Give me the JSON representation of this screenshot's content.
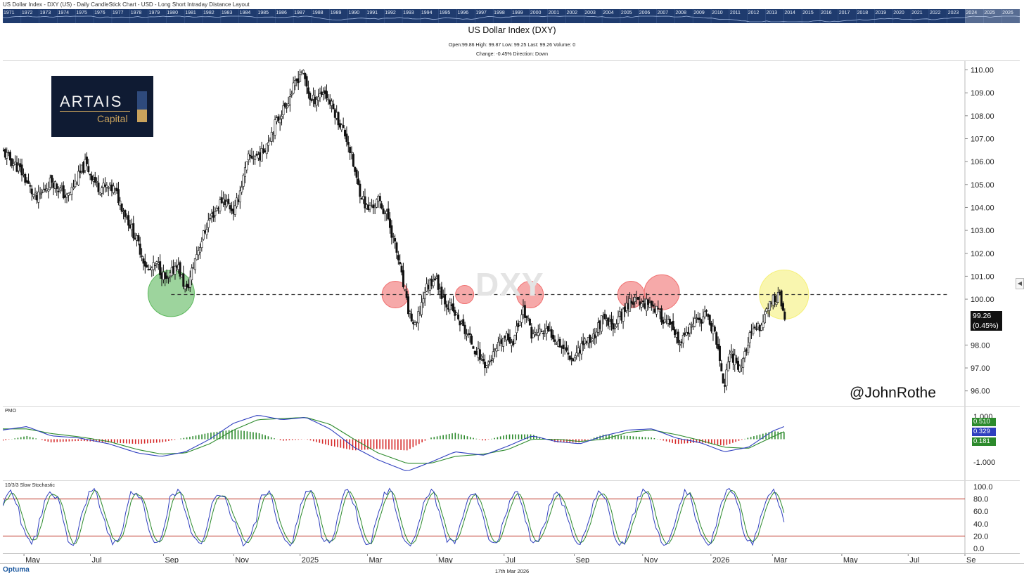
{
  "window_title": "US Dollar Index - DXY (US) - Daily CandleStick Chart - USD - Long Short Intraday Distance Layout",
  "timeline_years": [
    "1971",
    "1972",
    "1973",
    "1974",
    "1975",
    "1976",
    "1977",
    "1978",
    "1979",
    "1980",
    "1981",
    "1982",
    "1983",
    "1984",
    "1985",
    "1986",
    "1987",
    "1988",
    "1989",
    "1990",
    "1991",
    "1992",
    "1993",
    "1994",
    "1995",
    "1996",
    "1997",
    "1998",
    "1999",
    "2000",
    "2001",
    "2002",
    "2003",
    "2004",
    "2005",
    "2006",
    "2007",
    "2008",
    "2009",
    "2010",
    "2011",
    "2012",
    "2013",
    "2014",
    "2015",
    "2016",
    "2017",
    "2018",
    "2019",
    "2020",
    "2021",
    "2022",
    "2023",
    "2024",
    "2025",
    "2026"
  ],
  "title": "US Dollar Index (DXY)",
  "ohlc_line": "Open:99.86   High: 99.87   Low: 99.25   Last: 99.26   Volume: 0",
  "change_line": "Change: -0.45%   Direction: Down",
  "logo": {
    "word": "ARTAIS",
    "sub": "Capital"
  },
  "watermark": "DXY",
  "handle": "@JohnRothe",
  "last_price": {
    "value": "99.26",
    "change": "(0.45%)"
  },
  "footer": {
    "brand": "Optuma",
    "date": "17th Mar 2026"
  },
  "colors": {
    "candle": "#111111",
    "support_green": "#5cb85c",
    "resistance_red": "#f07070",
    "test_yellow": "#f5f07a",
    "pmo_blue": "#2f3fbf",
    "pmo_green": "#2c8a2c",
    "hist_red": "#d62a2a",
    "stoch_red": "#c0392b"
  },
  "icons": {
    "collapse": "chevron-left-icon"
  },
  "chart_data": [
    {
      "type": "candlestick",
      "title": "US Dollar Index (DXY)",
      "ylim": [
        95.5,
        110.2
      ],
      "y_ticks": [
        "110.00",
        "109.00",
        "108.00",
        "107.00",
        "106.00",
        "105.00",
        "104.00",
        "103.00",
        "102.00",
        "101.00",
        "100.00",
        "98.00",
        "97.00",
        "96.00"
      ],
      "x_tick_labels": [
        "May",
        "Jul",
        "Sep",
        "Nov",
        "2025",
        "Mar",
        "May",
        "Jul",
        "Sep",
        "Nov",
        "2026",
        "Mar",
        "May",
        "Jul",
        "Se"
      ],
      "x_tick_frac": [
        0.022,
        0.091,
        0.167,
        0.24,
        0.309,
        0.379,
        0.451,
        0.521,
        0.594,
        0.665,
        0.736,
        0.8,
        0.872,
        0.941,
        1.0
      ],
      "data_span_frac": [
        0.0,
        0.812
      ],
      "close_path": [
        [
          0.0,
          106.4
        ],
        [
          0.018,
          105.6
        ],
        [
          0.034,
          104.3
        ],
        [
          0.05,
          105.2
        ],
        [
          0.066,
          104.4
        ],
        [
          0.085,
          105.9
        ],
        [
          0.098,
          104.9
        ],
        [
          0.115,
          104.8
        ],
        [
          0.128,
          103.6
        ],
        [
          0.14,
          102.4
        ],
        [
          0.15,
          101.2
        ],
        [
          0.16,
          101.5
        ],
        [
          0.17,
          100.7
        ],
        [
          0.18,
          101.6
        ],
        [
          0.19,
          100.3
        ],
        [
          0.2,
          101.9
        ],
        [
          0.213,
          103.4
        ],
        [
          0.228,
          104.4
        ],
        [
          0.24,
          103.8
        ],
        [
          0.255,
          106.2
        ],
        [
          0.268,
          106.3
        ],
        [
          0.282,
          107.6
        ],
        [
          0.296,
          108.7
        ],
        [
          0.31,
          110.0
        ],
        [
          0.32,
          108.6
        ],
        [
          0.333,
          109.1
        ],
        [
          0.345,
          108.1
        ],
        [
          0.358,
          106.9
        ],
        [
          0.368,
          105.0
        ],
        [
          0.378,
          103.9
        ],
        [
          0.39,
          104.3
        ],
        [
          0.4,
          103.5
        ],
        [
          0.41,
          101.8
        ],
        [
          0.42,
          99.6
        ],
        [
          0.428,
          98.7
        ],
        [
          0.438,
          100.4
        ],
        [
          0.448,
          101.0
        ],
        [
          0.458,
          100.0
        ],
        [
          0.47,
          99.3
        ],
        [
          0.48,
          98.6
        ],
        [
          0.492,
          97.7
        ],
        [
          0.502,
          97.1
        ],
        [
          0.51,
          97.6
        ],
        [
          0.52,
          98.3
        ],
        [
          0.53,
          98.2
        ],
        [
          0.54,
          99.6
        ],
        [
          0.55,
          98.4
        ],
        [
          0.56,
          98.6
        ],
        [
          0.57,
          98.5
        ],
        [
          0.58,
          98.0
        ],
        [
          0.592,
          97.4
        ],
        [
          0.602,
          98.1
        ],
        [
          0.612,
          98.3
        ],
        [
          0.622,
          99.1
        ],
        [
          0.632,
          98.8
        ],
        [
          0.642,
          99.3
        ],
        [
          0.652,
          100.0
        ],
        [
          0.662,
          99.8
        ],
        [
          0.672,
          99.9
        ],
        [
          0.682,
          99.3
        ],
        [
          0.692,
          98.9
        ],
        [
          0.702,
          98.0
        ],
        [
          0.712,
          98.6
        ],
        [
          0.722,
          99.1
        ],
        [
          0.732,
          99.3
        ],
        [
          0.742,
          98.1
        ],
        [
          0.748,
          96.1
        ],
        [
          0.756,
          97.6
        ],
        [
          0.766,
          97.0
        ],
        [
          0.776,
          98.4
        ],
        [
          0.786,
          98.8
        ],
        [
          0.796,
          99.8
        ],
        [
          0.806,
          100.2
        ],
        [
          0.812,
          99.26
        ]
      ],
      "horizontal_line": 100.2,
      "markers": [
        {
          "x": 0.175,
          "y": 100.25,
          "color": "green"
        },
        {
          "x": 0.408,
          "y": 100.2,
          "color": "red"
        },
        {
          "x": 0.48,
          "y": 100.2,
          "color": "red"
        },
        {
          "x": 0.548,
          "y": 100.2,
          "color": "red"
        },
        {
          "x": 0.653,
          "y": 100.2,
          "color": "red"
        },
        {
          "x": 0.685,
          "y": 100.3,
          "color": "red"
        },
        {
          "x": 0.812,
          "y": 100.2,
          "color": "yellow"
        }
      ]
    },
    {
      "type": "line",
      "title": "PMO",
      "ylim": [
        -1.7,
        1.3
      ],
      "y_ticks": [
        "1.000",
        "-1.000"
      ],
      "values_labels": [
        "0.510",
        "0.329",
        "0.181"
      ],
      "pmo_path": [
        [
          0.0,
          0.4
        ],
        [
          0.025,
          0.55
        ],
        [
          0.05,
          0.15
        ],
        [
          0.08,
          0.05
        ],
        [
          0.11,
          -0.2
        ],
        [
          0.14,
          -0.6
        ],
        [
          0.165,
          -0.75
        ],
        [
          0.19,
          -0.55
        ],
        [
          0.215,
          0.0
        ],
        [
          0.24,
          0.7
        ],
        [
          0.265,
          1.05
        ],
        [
          0.29,
          0.85
        ],
        [
          0.315,
          0.95
        ],
        [
          0.34,
          0.45
        ],
        [
          0.365,
          -0.35
        ],
        [
          0.39,
          -0.9
        ],
        [
          0.42,
          -1.4
        ],
        [
          0.445,
          -1.0
        ],
        [
          0.47,
          -0.55
        ],
        [
          0.5,
          -0.7
        ],
        [
          0.525,
          -0.3
        ],
        [
          0.55,
          0.15
        ],
        [
          0.575,
          -0.1
        ],
        [
          0.6,
          -0.2
        ],
        [
          0.625,
          0.15
        ],
        [
          0.65,
          0.4
        ],
        [
          0.675,
          0.45
        ],
        [
          0.7,
          0.05
        ],
        [
          0.725,
          -0.15
        ],
        [
          0.75,
          -0.55
        ],
        [
          0.775,
          -0.35
        ],
        [
          0.8,
          0.35
        ],
        [
          0.812,
          0.55
        ]
      ],
      "signal_path": [
        [
          0.0,
          0.45
        ],
        [
          0.025,
          0.45
        ],
        [
          0.05,
          0.25
        ],
        [
          0.08,
          0.1
        ],
        [
          0.11,
          -0.1
        ],
        [
          0.14,
          -0.45
        ],
        [
          0.165,
          -0.65
        ],
        [
          0.19,
          -0.6
        ],
        [
          0.215,
          -0.2
        ],
        [
          0.24,
          0.4
        ],
        [
          0.265,
          0.85
        ],
        [
          0.29,
          0.9
        ],
        [
          0.315,
          0.95
        ],
        [
          0.34,
          0.65
        ],
        [
          0.365,
          0.0
        ],
        [
          0.39,
          -0.6
        ],
        [
          0.42,
          -1.05
        ],
        [
          0.445,
          -1.05
        ],
        [
          0.47,
          -0.75
        ],
        [
          0.5,
          -0.65
        ],
        [
          0.525,
          -0.45
        ],
        [
          0.55,
          0.0
        ],
        [
          0.575,
          0.0
        ],
        [
          0.6,
          -0.1
        ],
        [
          0.625,
          0.0
        ],
        [
          0.65,
          0.3
        ],
        [
          0.675,
          0.4
        ],
        [
          0.7,
          0.2
        ],
        [
          0.725,
          -0.05
        ],
        [
          0.75,
          -0.35
        ],
        [
          0.775,
          -0.4
        ],
        [
          0.8,
          0.1
        ],
        [
          0.812,
          0.33
        ]
      ]
    },
    {
      "type": "line",
      "title": "10/3/3 Slow Stochastic",
      "ylim": [
        0,
        100
      ],
      "y_ticks": [
        "100.0",
        "80.0",
        "60.0",
        "40.0",
        "20.0",
        "0.0"
      ],
      "ref_lines": [
        80,
        20
      ]
    }
  ]
}
